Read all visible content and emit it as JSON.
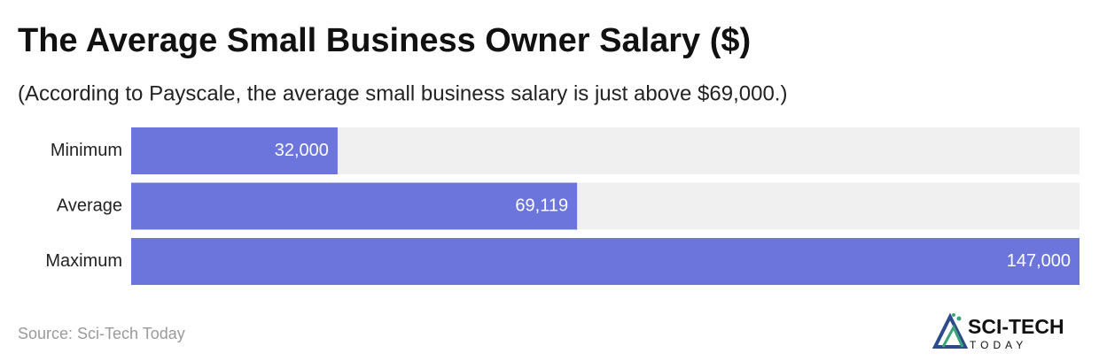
{
  "chart_data": {
    "type": "bar",
    "orientation": "horizontal",
    "title": "The Average Small Business Owner Salary ($)",
    "subtitle": "(According to Payscale, the average small business salary is just above $69,000.)",
    "categories": [
      "Minimum",
      "Average",
      "Maximum"
    ],
    "values": [
      32000,
      69119,
      147000
    ],
    "value_labels": [
      "32,000",
      "69,119",
      "147,000"
    ],
    "color": "#6b75db",
    "xlim": [
      0,
      147000
    ],
    "source": "Source: Sci-Tech Today",
    "logo": {
      "name": "SCI-TECH",
      "tagline": "TODAY"
    }
  }
}
